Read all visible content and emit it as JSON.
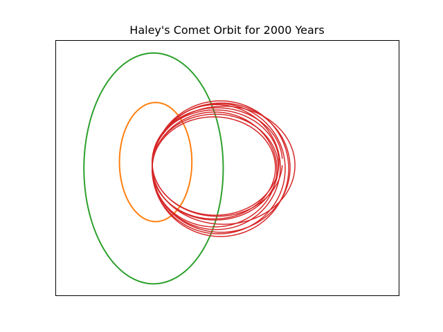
{
  "chart_data": {
    "type": "line",
    "title": "Haley's Comet Orbit for 2000 Years",
    "xlabel": "",
    "ylabel": "",
    "axes_ticks": false,
    "grid": false,
    "legend": false,
    "series": [
      {
        "color": "#2ca02c",
        "kind": "ellipse",
        "center": [
          0.0,
          0.0
        ],
        "semi_axes": [
          1.0,
          2.17
        ],
        "revolutions": 1
      },
      {
        "color": "#ff7f0e",
        "kind": "ellipse",
        "center": [
          0.03,
          0.12
        ],
        "semi_axes": [
          0.52,
          1.12
        ],
        "revolutions": 1
      },
      {
        "color": "#d62728",
        "kind": "precessing-ellipse",
        "loops": [
          {
            "left_x": -0.02,
            "right_x": 1.85,
            "top_y": 1.14,
            "bottom_y": -0.9
          },
          {
            "left_x": -0.02,
            "right_x": 1.8,
            "top_y": 1.1,
            "bottom_y": -0.88
          },
          {
            "left_x": -0.02,
            "right_x": 1.75,
            "top_y": 0.97,
            "bottom_y": -0.95
          },
          {
            "left_x": -0.02,
            "right_x": 1.77,
            "top_y": 1.06,
            "bottom_y": -1.1
          },
          {
            "left_x": -0.02,
            "right_x": 1.82,
            "top_y": 1.2,
            "bottom_y": -1.15
          },
          {
            "left_x": -0.02,
            "right_x": 1.89,
            "top_y": 1.22,
            "bottom_y": -1.23
          },
          {
            "left_x": -0.02,
            "right_x": 1.94,
            "top_y": 1.27,
            "bottom_y": -1.28
          },
          {
            "left_x": -0.02,
            "right_x": 1.96,
            "top_y": 1.23,
            "bottom_y": -1.2
          },
          {
            "left_x": -0.02,
            "right_x": 2.03,
            "top_y": 1.17,
            "bottom_y": -1.05
          },
          {
            "left_x": -0.02,
            "right_x": 1.79,
            "top_y": 1.02,
            "bottom_y": -0.97
          }
        ]
      }
    ],
    "xlim": [
      -1.4,
      3.53
    ],
    "ylim": [
      -2.4,
      2.4
    ]
  }
}
